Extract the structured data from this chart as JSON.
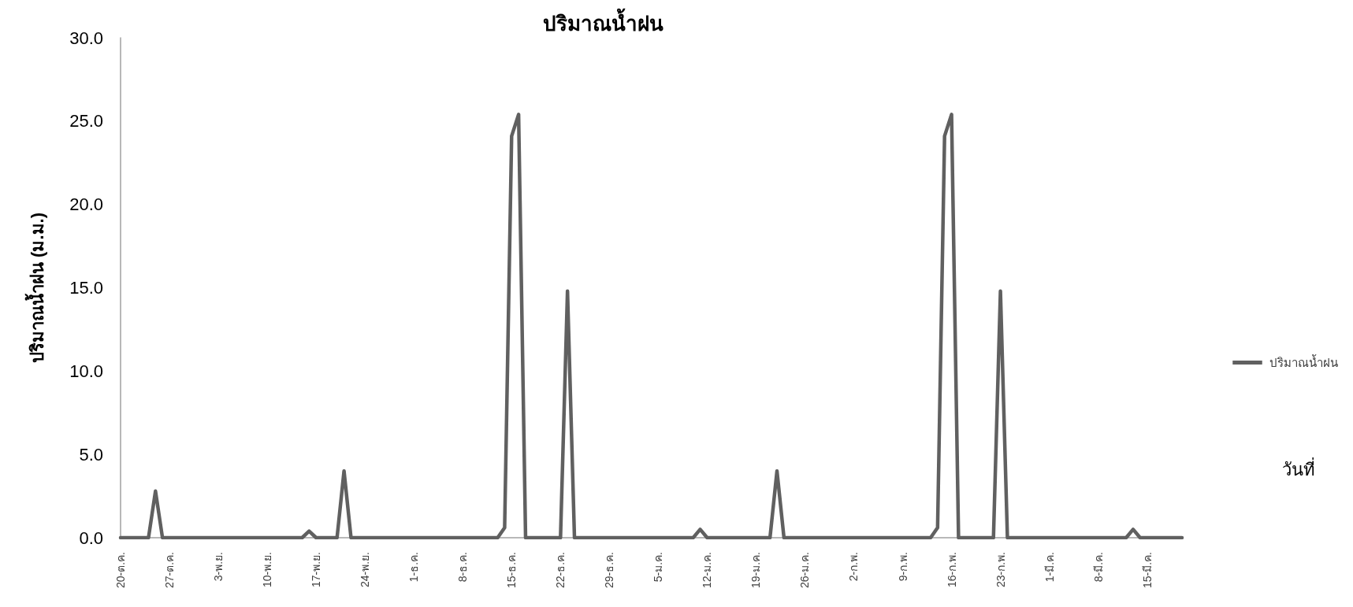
{
  "chart_data": {
    "type": "line",
    "title": "ปริมาณน้ำฝน",
    "annotations": [
      "วันที่"
    ],
    "ylabel": "ปริมาณน้ำฝน (ม.ม.)",
    "categories": [
      "20-ต.ค.",
      null,
      null,
      null,
      null,
      null,
      null,
      "27-ต.ค.",
      null,
      null,
      null,
      null,
      null,
      null,
      "3-พ.ย.",
      null,
      null,
      null,
      null,
      null,
      null,
      "10-พ.ย.",
      null,
      null,
      null,
      null,
      null,
      null,
      "17-พ.ย.",
      null,
      null,
      null,
      null,
      null,
      null,
      "24-พ.ย.",
      null,
      null,
      null,
      null,
      null,
      null,
      "1-ธ.ค.",
      null,
      null,
      null,
      null,
      null,
      null,
      "8-ธ.ค.",
      null,
      null,
      null,
      null,
      null,
      null,
      "15-ธ.ค.",
      null,
      null,
      null,
      null,
      null,
      null,
      "22-ธ.ค.",
      null,
      null,
      null,
      null,
      null,
      null,
      "29-ธ.ค.",
      null,
      null,
      null,
      null,
      null,
      null,
      "5-ม.ค.",
      null,
      null,
      null,
      null,
      null,
      null,
      "12-ม.ค.",
      null,
      null,
      null,
      null,
      null,
      null,
      "19-ม.ค.",
      null,
      null,
      null,
      null,
      null,
      null,
      "26-ม.ค.",
      null,
      null,
      null,
      null,
      null,
      null,
      "2-ก.พ.",
      null,
      null,
      null,
      null,
      null,
      null,
      "9-ก.พ.",
      null,
      null,
      null,
      null,
      null,
      null,
      "16-ก.พ.",
      null,
      null,
      null,
      null,
      null,
      null,
      "23-ก.พ.",
      null,
      null,
      null,
      null,
      null,
      null,
      "1-มี.ค.",
      null,
      null,
      null,
      null,
      null,
      null,
      "8-มี.ค.",
      null,
      null,
      null,
      null,
      null,
      null,
      "15-มี.ค.",
      null,
      null,
      null,
      null,
      null
    ],
    "series": [
      {
        "name": "ปริมาณน้ำฝน",
        "color": "#606060",
        "values": [
          0,
          0,
          0,
          0,
          0,
          2.8,
          0,
          0,
          0,
          0,
          0,
          0,
          0,
          0,
          0,
          0,
          0,
          0,
          0,
          0,
          0,
          0,
          0,
          0,
          0,
          0,
          0,
          0.4,
          0,
          0,
          0,
          0,
          4.0,
          0,
          0,
          0,
          0,
          0,
          0,
          0,
          0,
          0,
          0,
          0,
          0,
          0,
          0,
          0,
          0,
          0,
          0,
          0,
          0,
          0,
          0,
          0.6,
          24.1,
          25.4,
          0,
          0,
          0,
          0,
          0,
          0,
          14.8,
          0,
          0,
          0,
          0,
          0,
          0,
          0,
          0,
          0,
          0,
          0,
          0,
          0,
          0,
          0,
          0,
          0,
          0,
          0.5,
          0,
          0,
          0,
          0,
          0,
          0,
          0,
          0,
          0,
          0,
          4.0,
          0,
          0,
          0,
          0,
          0,
          0,
          0,
          0,
          0,
          0,
          0,
          0,
          0,
          0,
          0,
          0,
          0,
          0,
          0,
          0,
          0,
          0,
          0.6,
          24.1,
          25.4,
          0,
          0,
          0,
          0,
          0,
          0,
          14.8,
          0,
          0,
          0,
          0,
          0,
          0,
          0,
          0,
          0,
          0,
          0,
          0,
          0,
          0,
          0,
          0,
          0,
          0,
          0.5,
          0,
          0,
          0,
          0,
          0,
          0,
          0
        ]
      }
    ],
    "ylim": [
      0,
      30
    ],
    "yticks": [
      {
        "value": 0,
        "label": "0.0"
      },
      {
        "value": 5,
        "label": "5.0"
      },
      {
        "value": 10,
        "label": "10.0"
      },
      {
        "value": 15,
        "label": "15.0"
      },
      {
        "value": 20,
        "label": "20.0"
      },
      {
        "value": 25,
        "label": "25.0"
      },
      {
        "value": 30,
        "label": "30.0"
      }
    ],
    "grid": false,
    "legend": "right",
    "marker": "none",
    "line_style": "solid"
  }
}
